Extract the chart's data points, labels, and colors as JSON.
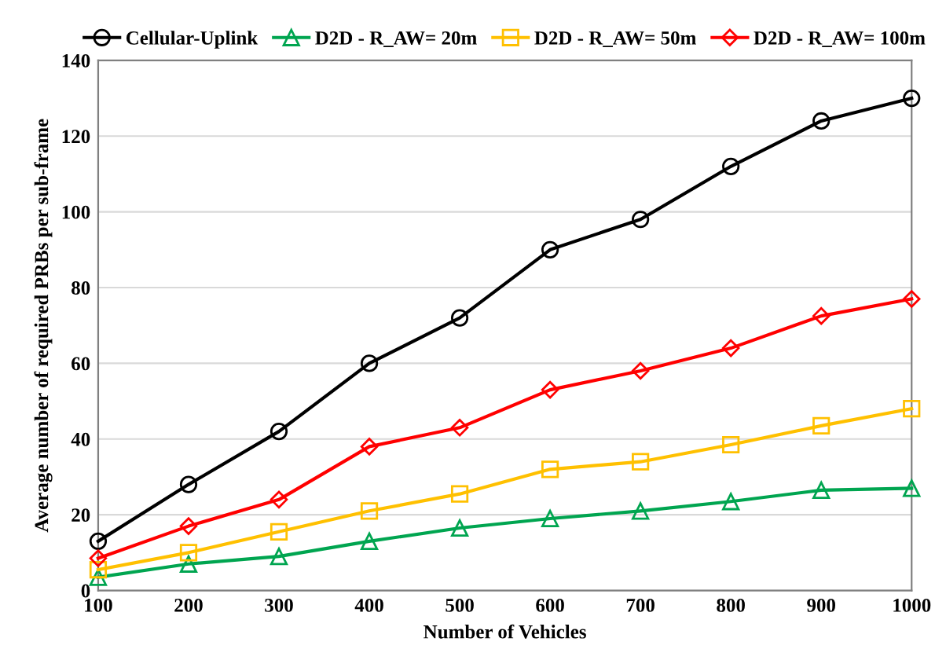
{
  "chart_data": {
    "type": "line",
    "xlabel": "Number of Vehicles",
    "ylabel": "Average number of required PRBs per sub-frame",
    "x": [
      100,
      200,
      300,
      400,
      500,
      600,
      700,
      800,
      900,
      1000
    ],
    "xlim": [
      100,
      1000
    ],
    "xticks": [
      100,
      200,
      300,
      400,
      500,
      600,
      700,
      800,
      900,
      1000
    ],
    "ylim": [
      0,
      140
    ],
    "yticks": [
      0,
      20,
      40,
      60,
      80,
      100,
      120,
      140
    ],
    "grid": "y",
    "legend": "top",
    "line_style": "solid",
    "series": [
      {
        "name": "Cellular-Uplink",
        "color": "#000000",
        "marker": "circle",
        "values": [
          13,
          28,
          42,
          60,
          72,
          90,
          98,
          112,
          124,
          130
        ]
      },
      {
        "name": "D2D - R_AW= 20m",
        "color": "#00a550",
        "marker": "triangle",
        "values": [
          3.5,
          7,
          9,
          13,
          16.5,
          19,
          21,
          23.5,
          26.5,
          27
        ]
      },
      {
        "name": "D2D - R_AW= 50m",
        "color": "#ffc000",
        "marker": "square",
        "values": [
          5.5,
          10,
          15.5,
          21,
          25.5,
          32,
          34,
          38.5,
          43.5,
          48
        ]
      },
      {
        "name": "D2D - R_AW= 100m",
        "color": "#ff0000",
        "marker": "diamond",
        "values": [
          8.5,
          17,
          24,
          38,
          43,
          53,
          58,
          64,
          72.5,
          77
        ]
      }
    ]
  }
}
